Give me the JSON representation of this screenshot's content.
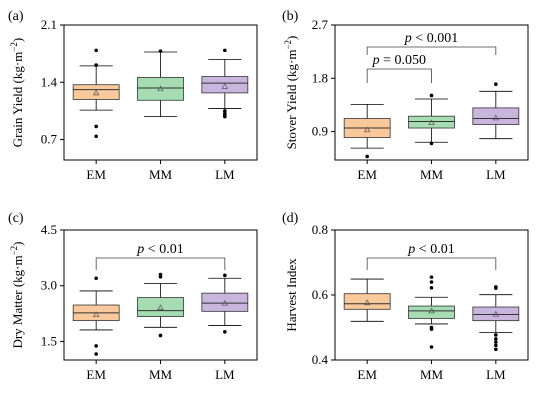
{
  "chart_data": [
    {
      "type": "box",
      "panel_label": "(a)",
      "ylabel": "Grain Yield (kg·m⁻²)",
      "ylim": [
        0.45,
        2.1
      ],
      "yticks": [
        "0.7",
        "1.4",
        "2.1"
      ],
      "ytick_values": [
        0.7,
        1.4,
        2.1
      ],
      "categories": [
        "EM",
        "MM",
        "LM"
      ],
      "colors": [
        "#f9c89b",
        "#a6dcb2",
        "#c9b5dd"
      ],
      "boxes": [
        {
          "whisker_low": 1.06,
          "q1": 1.19,
          "median": 1.31,
          "q3": 1.37,
          "whisker_high": 1.6,
          "mean": 1.27,
          "outliers": [
            1.79,
            1.61,
            0.86,
            0.74
          ]
        },
        {
          "whisker_low": 0.98,
          "q1": 1.18,
          "median": 1.33,
          "q3": 1.46,
          "whisker_high": 1.77,
          "mean": 1.32,
          "outliers": [
            1.78
          ]
        },
        {
          "whisker_low": 1.08,
          "q1": 1.27,
          "median": 1.39,
          "q3": 1.47,
          "whisker_high": 1.68,
          "mean": 1.35,
          "outliers": [
            1.79,
            1.05,
            1.02,
            1.0,
            0.98
          ]
        }
      ],
      "annotations": []
    },
    {
      "type": "box",
      "panel_label": "(b)",
      "ylabel": "Stover Yield (kg·m⁻²)",
      "ylim": [
        0.42,
        2.7
      ],
      "yticks": [
        "0.9",
        "1.8",
        "2.7"
      ],
      "ytick_values": [
        0.9,
        1.8,
        2.7
      ],
      "categories": [
        "EM",
        "MM",
        "LM"
      ],
      "colors": [
        "#f9c89b",
        "#a6dcb2",
        "#c9b5dd"
      ],
      "boxes": [
        {
          "whisker_low": 0.62,
          "q1": 0.8,
          "median": 0.96,
          "q3": 1.12,
          "whisker_high": 1.36,
          "mean": 0.93,
          "outliers": [
            0.48
          ]
        },
        {
          "whisker_low": 0.72,
          "q1": 0.96,
          "median": 1.07,
          "q3": 1.16,
          "whisker_high": 1.45,
          "mean": 1.05,
          "outliers": [
            1.51,
            0.7
          ]
        },
        {
          "whisker_low": 0.78,
          "q1": 1.02,
          "median": 1.12,
          "q3": 1.3,
          "whisker_high": 1.58,
          "mean": 1.13,
          "outliers": [
            1.7
          ]
        }
      ],
      "annotations": [
        {
          "text": "p = 0.050",
          "from": "EM",
          "to": "MM",
          "level": 1
        },
        {
          "text": "p < 0.001",
          "from": "EM",
          "to": "LM",
          "level": 2
        }
      ]
    },
    {
      "type": "box",
      "panel_label": "(c)",
      "ylabel": "Dry Matter (kg·m⁻²)",
      "ylim": [
        1.0,
        4.5
      ],
      "yticks": [
        "1.5",
        "3.0",
        "4.5"
      ],
      "ytick_values": [
        1.5,
        3.0,
        4.5
      ],
      "categories": [
        "EM",
        "MM",
        "LM"
      ],
      "colors": [
        "#f9c89b",
        "#a6dcb2",
        "#c9b5dd"
      ],
      "boxes": [
        {
          "whisker_low": 1.81,
          "q1": 2.06,
          "median": 2.27,
          "q3": 2.48,
          "whisker_high": 2.86,
          "mean": 2.22,
          "outliers": [
            3.2,
            1.38,
            1.16
          ]
        },
        {
          "whisker_low": 1.88,
          "q1": 2.17,
          "median": 2.33,
          "q3": 2.68,
          "whisker_high": 3.06,
          "mean": 2.41,
          "outliers": [
            3.3,
            3.24,
            1.66
          ]
        },
        {
          "whisker_low": 1.93,
          "q1": 2.31,
          "median": 2.53,
          "q3": 2.8,
          "whisker_high": 3.2,
          "mean": 2.53,
          "outliers": [
            3.28,
            1.76
          ]
        }
      ],
      "annotations": [
        {
          "text": "p < 0.01",
          "from": "EM",
          "to": "LM",
          "level": 1
        }
      ]
    },
    {
      "type": "box",
      "panel_label": "(d)",
      "ylabel": "Harvest Index",
      "ylim": [
        0.4,
        0.8
      ],
      "yticks": [
        "0.4",
        "0.6",
        "0.8"
      ],
      "ytick_values": [
        0.4,
        0.6,
        0.8
      ],
      "categories": [
        "EM",
        "MM",
        "LM"
      ],
      "colors": [
        "#f9c89b",
        "#a6dcb2",
        "#c9b5dd"
      ],
      "boxes": [
        {
          "whisker_low": 0.519,
          "q1": 0.556,
          "median": 0.573,
          "q3": 0.604,
          "whisker_high": 0.649,
          "mean": 0.576,
          "outliers": []
        },
        {
          "whisker_low": 0.511,
          "q1": 0.528,
          "median": 0.551,
          "q3": 0.566,
          "whisker_high": 0.593,
          "mean": 0.551,
          "outliers": [
            0.655,
            0.64,
            0.622,
            0.5,
            0.495,
            0.44
          ]
        },
        {
          "whisker_low": 0.485,
          "q1": 0.521,
          "median": 0.54,
          "q3": 0.563,
          "whisker_high": 0.601,
          "mean": 0.541,
          "outliers": [
            0.625,
            0.621,
            0.477,
            0.465,
            0.455,
            0.445,
            0.433
          ]
        }
      ],
      "annotations": [
        {
          "text": "p < 0.01",
          "from": "EM",
          "to": "LM",
          "level": 1
        }
      ]
    }
  ]
}
